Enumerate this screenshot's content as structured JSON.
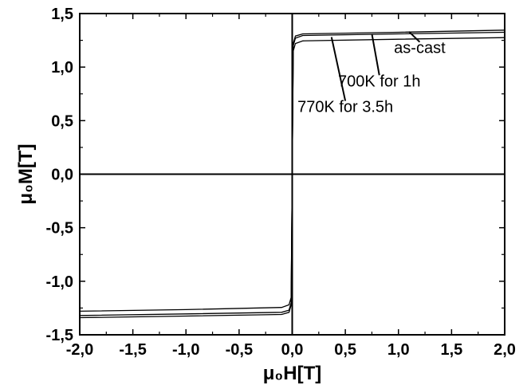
{
  "chart_data": {
    "type": "line",
    "xlabel": "μ₀H[T]",
    "ylabel": "μ₀M[T]",
    "xlim": [
      -2.0,
      2.0
    ],
    "ylim": [
      -1.5,
      1.5
    ],
    "x_ticks": [
      -2.0,
      -1.5,
      -1.0,
      -0.5,
      0.0,
      0.5,
      1.0,
      1.5,
      2.0
    ],
    "x_tick_labels": [
      "-2,0",
      "-1,5",
      "-1,0",
      "-0,5",
      "0,0",
      "0,5",
      "1,0",
      "1,5",
      "2,0"
    ],
    "y_ticks": [
      -1.5,
      -1.0,
      -0.5,
      0.0,
      0.5,
      1.0,
      1.5
    ],
    "y_tick_labels": [
      "-1,5",
      "-1,0",
      "-0,5",
      "0,0",
      "0,5",
      "1,0",
      "1,5"
    ],
    "grid": false,
    "zero_lines": true,
    "series": [
      {
        "name": "as-cast",
        "x": [
          -2.0,
          -1.0,
          -0.1,
          -0.03,
          -0.01,
          0.0,
          0.01,
          0.03,
          0.1,
          1.0,
          2.0
        ],
        "y": [
          -1.34,
          -1.325,
          -1.31,
          -1.29,
          -1.22,
          0.0,
          1.22,
          1.29,
          1.31,
          1.325,
          1.345
        ]
      },
      {
        "name": "700K for 1h",
        "x": [
          -2.0,
          -1.0,
          -0.1,
          -0.03,
          -0.01,
          0.0,
          0.01,
          0.03,
          0.1,
          1.0,
          2.0
        ],
        "y": [
          -1.32,
          -1.305,
          -1.29,
          -1.27,
          -1.2,
          0.0,
          1.2,
          1.27,
          1.295,
          1.31,
          1.325
        ]
      },
      {
        "name": "770K for 3.5h",
        "x": [
          -2.0,
          -1.0,
          -0.1,
          -0.03,
          -0.01,
          0.0,
          0.01,
          0.03,
          0.1,
          1.0,
          2.0
        ],
        "y": [
          -1.28,
          -1.265,
          -1.245,
          -1.22,
          -1.15,
          0.0,
          1.15,
          1.22,
          1.245,
          1.26,
          1.275
        ]
      }
    ],
    "annotations": [
      {
        "text": "as-cast",
        "point": [
          1.1,
          1.33
        ],
        "label_at": [
          1.2,
          1.13
        ]
      },
      {
        "text": "700K for 1h",
        "point": [
          0.75,
          1.31
        ],
        "label_at": [
          0.82,
          0.82
        ]
      },
      {
        "text": "770K for 3.5h",
        "point": [
          0.37,
          1.28
        ],
        "label_at": [
          0.5,
          0.58
        ]
      }
    ]
  }
}
